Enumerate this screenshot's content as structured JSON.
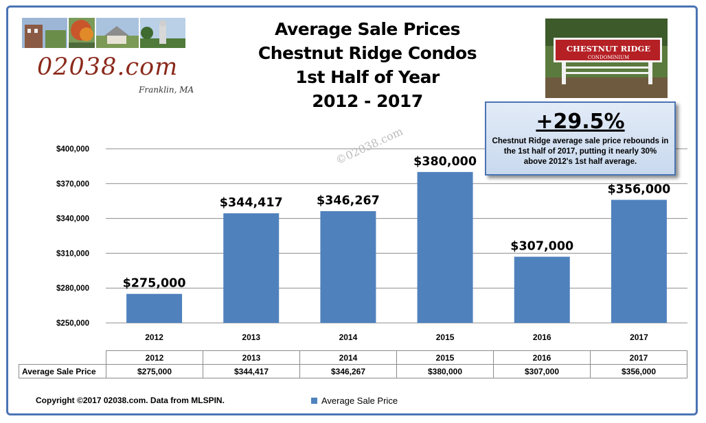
{
  "title_lines": [
    "Average Sale Prices",
    "Chestnut Ridge Condos",
    "1st Half of Year",
    "2012 - 2017"
  ],
  "logo": {
    "site": "02038.com",
    "town": "Franklin, MA"
  },
  "sign": {
    "line1": "CHESTNUT RIDGE",
    "line2": "CONDOMINIUM"
  },
  "watermark": "©02038.com",
  "callout": {
    "headline": "+29.5%",
    "body": "Chestnut Ridge average sale price rebounds in the 1st half of 2017, putting it nearly 30% above 2012's 1st half average."
  },
  "table": {
    "row_label": "Average Sale Price",
    "columns": [
      "2012",
      "2013",
      "2014",
      "2015",
      "2016",
      "2017"
    ],
    "values": [
      "$275,000",
      "$344,417",
      "$346,267",
      "$380,000",
      "$307,000",
      "$356,000"
    ]
  },
  "footer": {
    "copyright": "Copyright ©2017  02038.com. Data from MLSPIN."
  },
  "colors": {
    "bar": "#4f81bd",
    "frame": "#4a74b4",
    "callout_bg": "#d5e2f2",
    "logo_text": "#8b2a1c"
  },
  "chart_data": {
    "type": "bar",
    "title": "Average Sale Prices Chestnut Ridge Condos 1st Half of Year 2012 - 2017",
    "categories": [
      "2012",
      "2013",
      "2014",
      "2015",
      "2016",
      "2017"
    ],
    "series": [
      {
        "name": "Average Sale Price",
        "values": [
          275000,
          344417,
          346267,
          380000,
          307000,
          356000
        ]
      }
    ],
    "data_labels": [
      "$275,000",
      "$344,417",
      "$346,267",
      "$380,000",
      "$307,000",
      "$356,000"
    ],
    "ylim": [
      250000,
      400000
    ],
    "yticks": [
      250000,
      280000,
      310000,
      340000,
      370000,
      400000
    ],
    "ytick_labels": [
      "$250,000",
      "$280,000",
      "$310,000",
      "$340,000",
      "$370,000",
      "$400,000"
    ],
    "grid": true,
    "legend": "bottom",
    "xlabel": "",
    "ylabel": ""
  }
}
